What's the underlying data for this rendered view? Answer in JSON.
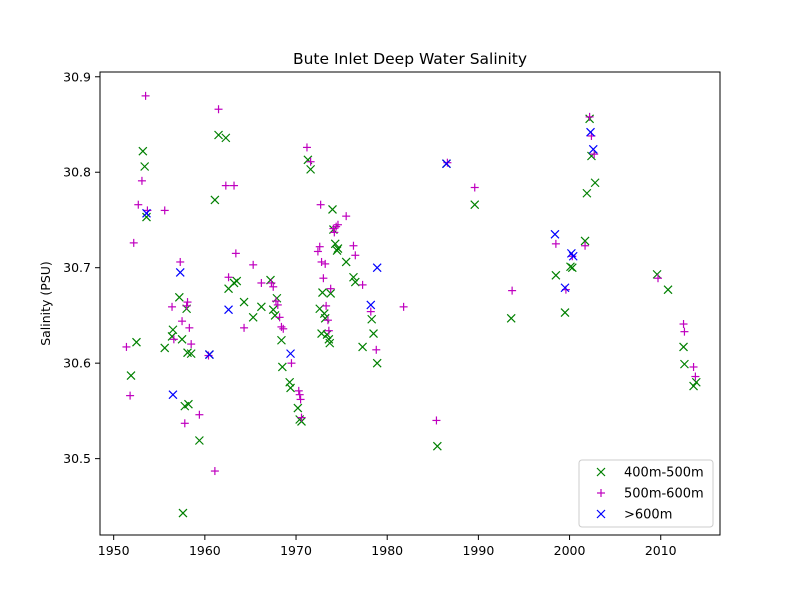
{
  "chart_data": {
    "type": "scatter",
    "title": "Bute Inlet Deep Water Salinity",
    "xlabel": "",
    "ylabel": "Salinity (PSU)",
    "xlim": [
      1948.5,
      2016.5
    ],
    "ylim": [
      30.42,
      30.905
    ],
    "xticks": [
      1950,
      1960,
      1970,
      1980,
      1990,
      2000,
      2010
    ],
    "yticks": [
      30.5,
      30.6,
      30.7,
      30.8,
      30.9
    ],
    "ytick_labels": [
      "30.5",
      "30.6",
      "30.7",
      "30.8",
      "30.9"
    ],
    "grid": false,
    "legend_position": "lower-right",
    "series": [
      {
        "name": "400m-500m",
        "color": "#008000",
        "marker": "x",
        "points": [
          [
            1951.9,
            30.587
          ],
          [
            1952.5,
            30.622
          ],
          [
            1953.2,
            30.822
          ],
          [
            1953.4,
            30.806
          ],
          [
            1953.6,
            30.753
          ],
          [
            1955.6,
            30.616
          ],
          [
            1956.4,
            30.628
          ],
          [
            1956.5,
            30.635
          ],
          [
            1957.2,
            30.669
          ],
          [
            1957.5,
            30.625
          ],
          [
            1957.6,
            30.443
          ],
          [
            1957.8,
            30.555
          ],
          [
            1958.0,
            30.657
          ],
          [
            1958.1,
            30.611
          ],
          [
            1958.2,
            30.557
          ],
          [
            1958.5,
            30.61
          ],
          [
            1959.4,
            30.519
          ],
          [
            1960.5,
            30.609
          ],
          [
            1961.1,
            30.771
          ],
          [
            1961.5,
            30.839
          ],
          [
            1962.3,
            30.836
          ],
          [
            1962.6,
            30.678
          ],
          [
            1963.2,
            30.684
          ],
          [
            1963.5,
            30.686
          ],
          [
            1964.3,
            30.664
          ],
          [
            1965.3,
            30.648
          ],
          [
            1966.2,
            30.659
          ],
          [
            1967.2,
            30.687
          ],
          [
            1967.5,
            30.656
          ],
          [
            1967.7,
            30.65
          ],
          [
            1967.9,
            30.668
          ],
          [
            1968.4,
            30.624
          ],
          [
            1968.5,
            30.596
          ],
          [
            1969.3,
            30.58
          ],
          [
            1969.4,
            30.574
          ],
          [
            1970.2,
            30.553
          ],
          [
            1970.4,
            30.541
          ],
          [
            1970.6,
            30.539
          ],
          [
            1971.3,
            30.813
          ],
          [
            1971.6,
            30.803
          ],
          [
            1972.6,
            30.657
          ],
          [
            1972.8,
            30.631
          ],
          [
            1972.9,
            30.674
          ],
          [
            1973.1,
            30.652
          ],
          [
            1973.2,
            30.647
          ],
          [
            1973.4,
            30.63
          ],
          [
            1973.6,
            30.625
          ],
          [
            1973.7,
            30.621
          ],
          [
            1973.8,
            30.673
          ],
          [
            1974.0,
            30.761
          ],
          [
            1974.1,
            30.74
          ],
          [
            1974.3,
            30.725
          ],
          [
            1974.5,
            30.718
          ],
          [
            1974.6,
            30.72
          ],
          [
            1975.5,
            30.706
          ],
          [
            1976.3,
            30.69
          ],
          [
            1976.5,
            30.685
          ],
          [
            1977.3,
            30.617
          ],
          [
            1978.3,
            30.646
          ],
          [
            1978.5,
            30.631
          ],
          [
            1978.9,
            30.6
          ],
          [
            1985.5,
            30.513
          ],
          [
            1986.5,
            30.809
          ],
          [
            1989.6,
            30.766
          ],
          [
            1993.6,
            30.647
          ],
          [
            1998.5,
            30.692
          ],
          [
            1999.5,
            30.653
          ],
          [
            2000.1,
            30.701
          ],
          [
            2000.3,
            30.7
          ],
          [
            2001.7,
            30.728
          ],
          [
            2001.9,
            30.778
          ],
          [
            2002.2,
            30.856
          ],
          [
            2002.4,
            30.817
          ],
          [
            2002.8,
            30.789
          ],
          [
            2009.6,
            30.693
          ],
          [
            2010.8,
            30.677
          ],
          [
            2012.5,
            30.617
          ],
          [
            2012.6,
            30.599
          ],
          [
            2013.6,
            30.576
          ],
          [
            2013.9,
            30.58
          ]
        ]
      },
      {
        "name": "500m-600m",
        "color": "#bf00bf",
        "marker": "+",
        "points": [
          [
            1951.4,
            30.617
          ],
          [
            1951.8,
            30.566
          ],
          [
            1952.2,
            30.726
          ],
          [
            1952.7,
            30.766
          ],
          [
            1953.1,
            30.791
          ],
          [
            1953.5,
            30.88
          ],
          [
            1953.7,
            30.76
          ],
          [
            1955.6,
            30.76
          ],
          [
            1956.4,
            30.659
          ],
          [
            1956.6,
            30.625
          ],
          [
            1957.3,
            30.706
          ],
          [
            1957.5,
            30.644
          ],
          [
            1957.8,
            30.537
          ],
          [
            1958.0,
            30.66
          ],
          [
            1958.1,
            30.664
          ],
          [
            1958.3,
            30.637
          ],
          [
            1958.5,
            30.62
          ],
          [
            1959.4,
            30.546
          ],
          [
            1960.4,
            30.608
          ],
          [
            1961.1,
            30.487
          ],
          [
            1961.5,
            30.866
          ],
          [
            1962.3,
            30.786
          ],
          [
            1962.6,
            30.69
          ],
          [
            1963.2,
            30.786
          ],
          [
            1963.4,
            30.715
          ],
          [
            1964.3,
            30.637
          ],
          [
            1965.3,
            30.703
          ],
          [
            1966.2,
            30.684
          ],
          [
            1967.3,
            30.684
          ],
          [
            1967.5,
            30.68
          ],
          [
            1967.8,
            30.665
          ],
          [
            1968.0,
            30.661
          ],
          [
            1968.2,
            30.648
          ],
          [
            1968.4,
            30.638
          ],
          [
            1968.6,
            30.636
          ],
          [
            1969.5,
            30.6
          ],
          [
            1970.3,
            30.571
          ],
          [
            1970.4,
            30.567
          ],
          [
            1970.5,
            30.562
          ],
          [
            1970.6,
            30.543
          ],
          [
            1971.2,
            30.826
          ],
          [
            1971.6,
            30.811
          ],
          [
            1972.4,
            30.717
          ],
          [
            1972.6,
            30.722
          ],
          [
            1972.7,
            30.766
          ],
          [
            1972.8,
            30.706
          ],
          [
            1973.0,
            30.689
          ],
          [
            1973.2,
            30.704
          ],
          [
            1973.3,
            30.66
          ],
          [
            1973.5,
            30.645
          ],
          [
            1973.6,
            30.634
          ],
          [
            1973.8,
            30.678
          ],
          [
            1974.1,
            30.741
          ],
          [
            1974.2,
            30.737
          ],
          [
            1974.4,
            30.743
          ],
          [
            1974.6,
            30.745
          ],
          [
            1975.5,
            30.754
          ],
          [
            1976.3,
            30.723
          ],
          [
            1976.5,
            30.713
          ],
          [
            1977.3,
            30.682
          ],
          [
            1978.2,
            30.654
          ],
          [
            1978.8,
            30.614
          ],
          [
            1981.8,
            30.659
          ],
          [
            1985.4,
            30.54
          ],
          [
            1986.6,
            30.81
          ],
          [
            1989.6,
            30.784
          ],
          [
            1993.7,
            30.676
          ],
          [
            1998.5,
            30.725
          ],
          [
            1999.6,
            30.677
          ],
          [
            2000.3,
            30.712
          ],
          [
            2001.7,
            30.723
          ],
          [
            2002.2,
            30.858
          ],
          [
            2002.4,
            30.838
          ],
          [
            2002.7,
            30.819
          ],
          [
            2009.7,
            30.689
          ],
          [
            2012.5,
            30.641
          ],
          [
            2012.6,
            30.633
          ],
          [
            2013.6,
            30.596
          ],
          [
            2013.8,
            30.586
          ]
        ]
      },
      {
        "name": ">600m",
        "color": "#0000ff",
        "marker": "x",
        "points": [
          [
            1953.6,
            30.757
          ],
          [
            1956.5,
            30.567
          ],
          [
            1957.3,
            30.695
          ],
          [
            1960.5,
            30.609
          ],
          [
            1962.6,
            30.656
          ],
          [
            1969.4,
            30.61
          ],
          [
            1978.2,
            30.661
          ],
          [
            1978.9,
            30.7
          ],
          [
            1986.5,
            30.809
          ],
          [
            1998.4,
            30.735
          ],
          [
            1999.5,
            30.679
          ],
          [
            2000.2,
            30.715
          ],
          [
            2000.4,
            30.712
          ],
          [
            2002.3,
            30.842
          ],
          [
            2002.6,
            30.824
          ]
        ]
      }
    ]
  }
}
